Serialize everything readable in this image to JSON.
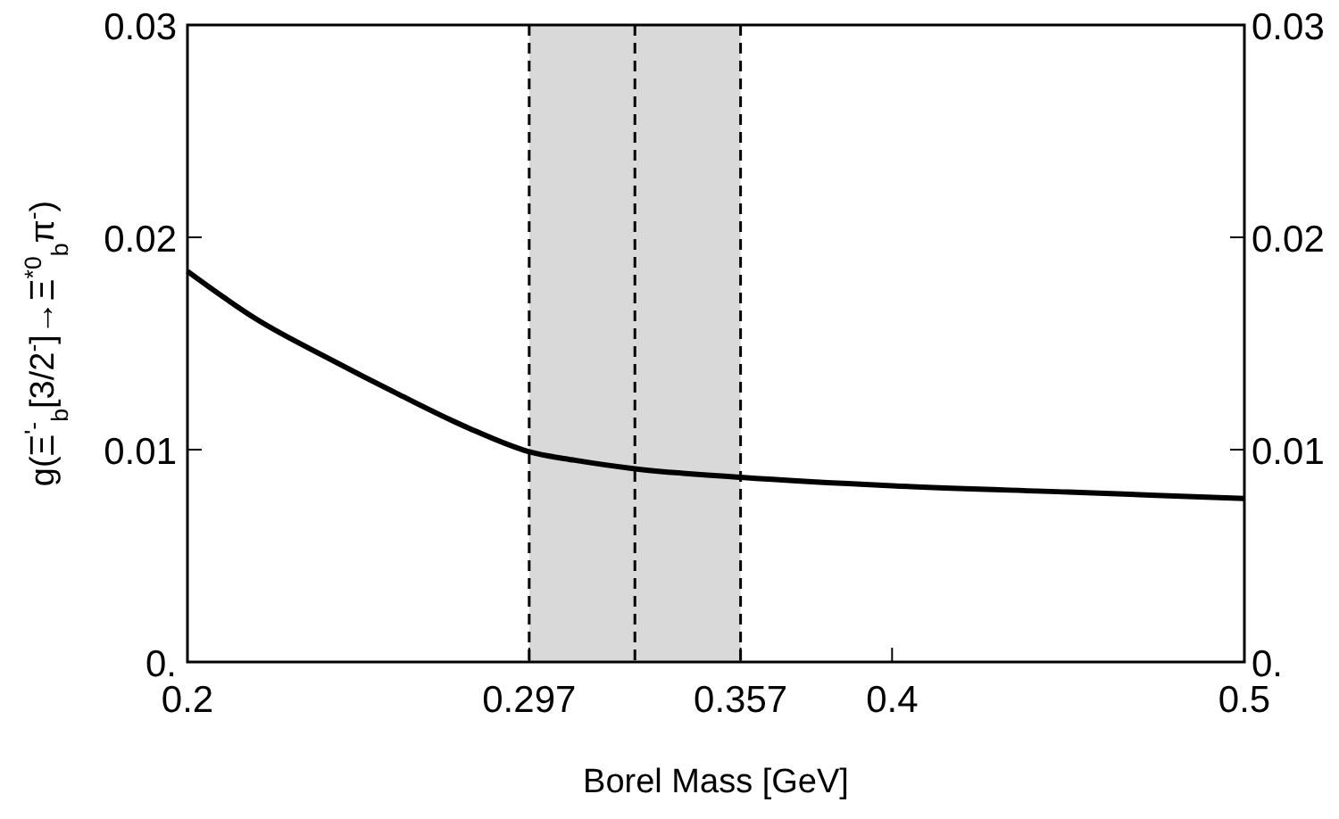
{
  "chart_data": {
    "type": "line",
    "xlabel": "Borel Mass [GeV]",
    "ylabel": "g(Ξ$^{'-}$$_{b}$[3/2$^{-}$]→Ξ$^{*0}$$_{b}$π$^{-}$)",
    "xlim": [
      0.2,
      0.5
    ],
    "xticks": [
      0.2,
      0.297,
      0.357,
      0.4,
      0.5
    ],
    "ylim": [
      0,
      0.03
    ],
    "yticks": [
      {
        "value": 0,
        "label": "0."
      },
      0.01,
      0.02,
      0.03
    ],
    "y2lim": [
      0,
      0.03
    ],
    "y2ticks": [
      {
        "value": 0,
        "label": "0."
      },
      0.01,
      0.02,
      0.03
    ],
    "grid": false,
    "marker": "none",
    "line_style": "solid",
    "bands": [
      {
        "axis": "x",
        "from": 0.297,
        "to": 0.357,
        "color": "#d9d9d9"
      }
    ],
    "ref_lines": [
      {
        "axis": "x",
        "value": 0.297,
        "color": "#000000",
        "line_style": "dashed"
      },
      {
        "axis": "x",
        "value": 0.327,
        "color": "#000000",
        "line_style": "dashed"
      },
      {
        "axis": "x",
        "value": 0.357,
        "color": "#000000",
        "line_style": "dashed"
      }
    ],
    "series": [
      {
        "color": "#000000",
        "x": [
          0.2,
          0.22,
          0.24,
          0.26,
          0.28,
          0.297,
          0.31,
          0.327,
          0.357,
          0.4,
          0.45,
          0.5
        ],
        "values": [
          0.0184,
          0.0161,
          0.0143,
          0.0126,
          0.011,
          0.0099,
          0.0095,
          0.0091,
          0.0087,
          0.0083,
          0.008,
          0.0077
        ]
      }
    ]
  }
}
